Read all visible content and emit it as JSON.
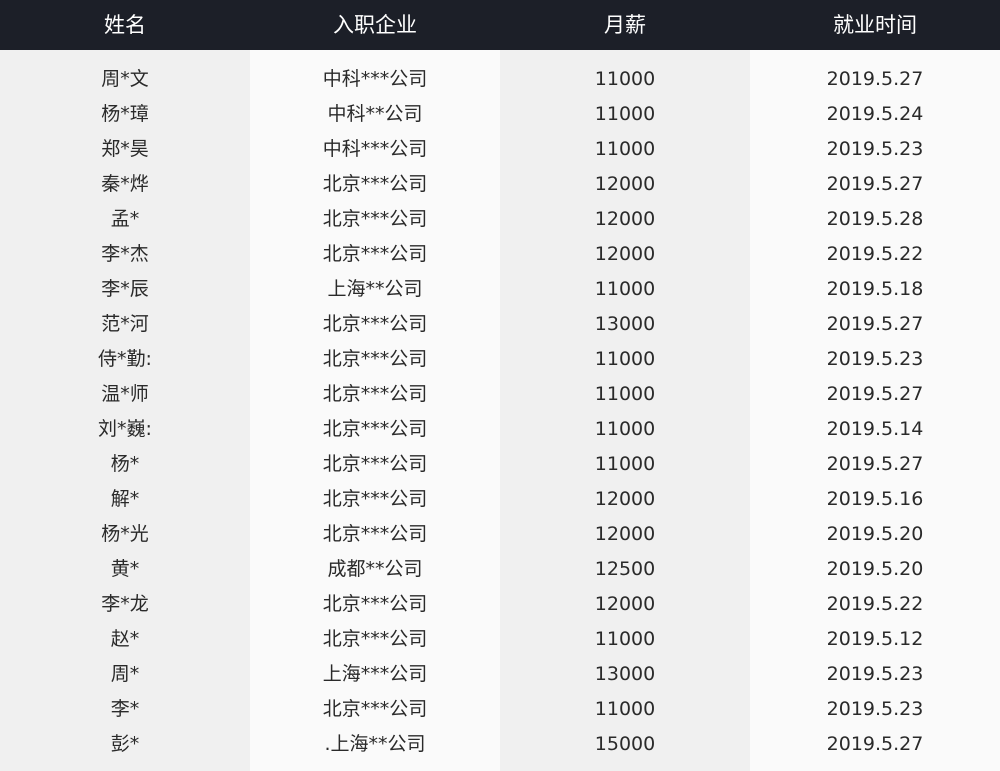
{
  "columns": [
    "姓名",
    "入职企业",
    "月薪",
    "就业时间"
  ],
  "colors": {
    "header_bg": "#1c1f28",
    "header_text": "#ffffff",
    "stripe_dark": "#f0f0f0",
    "stripe_light": "#fafafa"
  },
  "rows": [
    [
      "周*文",
      "中科***公司",
      "11000",
      "2019.5.27"
    ],
    [
      "杨*璋",
      "中科**公司",
      "11000",
      "2019.5.24"
    ],
    [
      "郑*昊",
      "中科***公司",
      "11000",
      "2019.5.23"
    ],
    [
      "秦*烨",
      "北京***公司",
      "12000",
      "2019.5.27"
    ],
    [
      "孟*",
      "北京***公司",
      "12000",
      "2019.5.28"
    ],
    [
      "李*杰",
      "北京***公司",
      "12000",
      "2019.5.22"
    ],
    [
      "李*辰",
      "上海**公司",
      "11000",
      "2019.5.18"
    ],
    [
      "范*河",
      "北京***公司",
      "13000",
      "2019.5.27"
    ],
    [
      "侍*勤:",
      "北京***公司",
      "11000",
      "2019.5.23"
    ],
    [
      "温*师",
      "北京***公司",
      "11000",
      "2019.5.27"
    ],
    [
      "刘*巍:",
      "北京***公司",
      "11000",
      "2019.5.14"
    ],
    [
      "杨*",
      "北京***公司",
      "11000",
      "2019.5.27"
    ],
    [
      "解*",
      "北京***公司",
      "12000",
      "2019.5.16"
    ],
    [
      "杨*光",
      "北京***公司",
      "12000",
      "2019.5.20"
    ],
    [
      "黄*",
      "成都**公司",
      "12500",
      "2019.5.20"
    ],
    [
      "李*龙",
      "北京***公司",
      "12000",
      "2019.5.22"
    ],
    [
      "赵*",
      "北京***公司",
      "11000",
      "2019.5.12"
    ],
    [
      "周*",
      "上海***公司",
      "13000",
      "2019.5.23"
    ],
    [
      "李*",
      "北京***公司",
      "11000",
      "2019.5.23"
    ],
    [
      "彭*",
      ".上海**公司",
      "15000",
      "2019.5.27"
    ]
  ]
}
